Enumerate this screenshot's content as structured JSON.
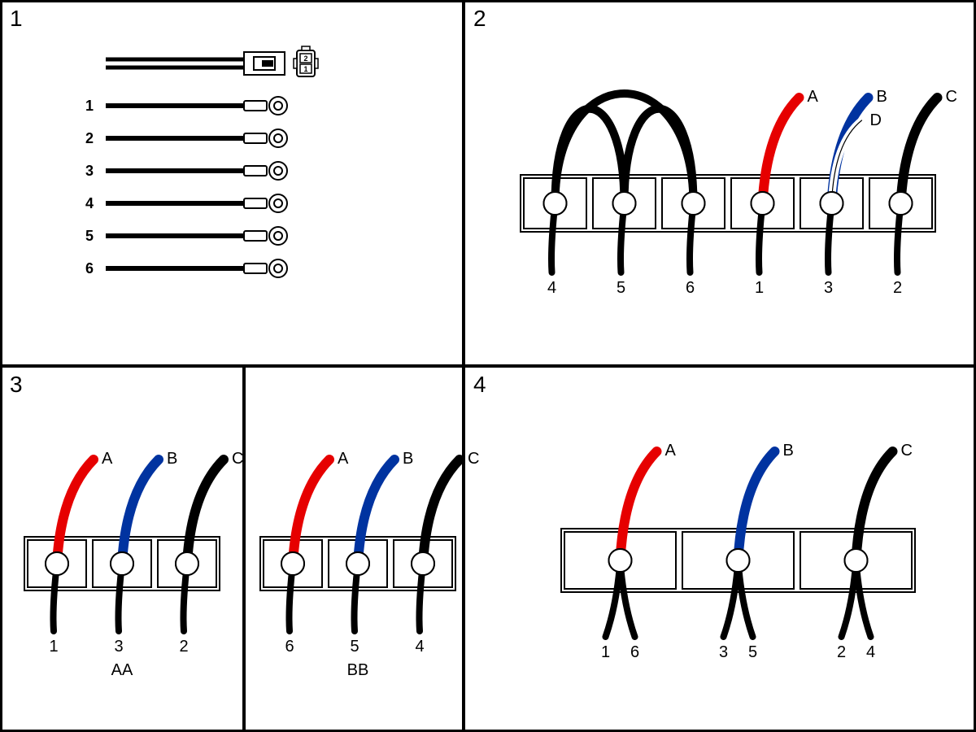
{
  "colors": {
    "red": "#e60000",
    "blue": "#0033a0",
    "black": "#000000",
    "white": "#ffffff",
    "border": "#000000"
  },
  "panels": {
    "p1": "1",
    "p2": "2",
    "p3": "3",
    "p4": "4"
  },
  "panel1": {
    "wires": [
      "1",
      "2",
      "3",
      "4",
      "5",
      "6"
    ],
    "pins": [
      "2",
      "1"
    ]
  },
  "panel2": {
    "terminals": [
      {
        "num": "4",
        "topColor": "black"
      },
      {
        "num": "5",
        "topColor": "black"
      },
      {
        "num": "6",
        "topColor": "black"
      },
      {
        "num": "1",
        "topColor": "red",
        "label": "A"
      },
      {
        "num": "3",
        "topColor": "blue",
        "label": "B",
        "label2": "D"
      },
      {
        "num": "2",
        "topColor": "black",
        "label": "C"
      }
    ]
  },
  "panel3": {
    "groupA": {
      "label": "AA",
      "terminals": [
        {
          "num": "1",
          "topColor": "red",
          "label": "A"
        },
        {
          "num": "3",
          "topColor": "blue",
          "label": "B"
        },
        {
          "num": "2",
          "topColor": "black",
          "label": "C"
        }
      ]
    },
    "groupB": {
      "label": "BB",
      "terminals": [
        {
          "num": "6",
          "topColor": "red",
          "label": "A"
        },
        {
          "num": "5",
          "topColor": "blue",
          "label": "B"
        },
        {
          "num": "4",
          "topColor": "black",
          "label": "C"
        }
      ]
    }
  },
  "panel4": {
    "terminals": [
      {
        "nums": [
          "1",
          "6"
        ],
        "topColor": "red",
        "label": "A"
      },
      {
        "nums": [
          "3",
          "5"
        ],
        "topColor": "blue",
        "label": "B"
      },
      {
        "nums": [
          "2",
          "4"
        ],
        "topColor": "black",
        "label": "C"
      }
    ]
  }
}
